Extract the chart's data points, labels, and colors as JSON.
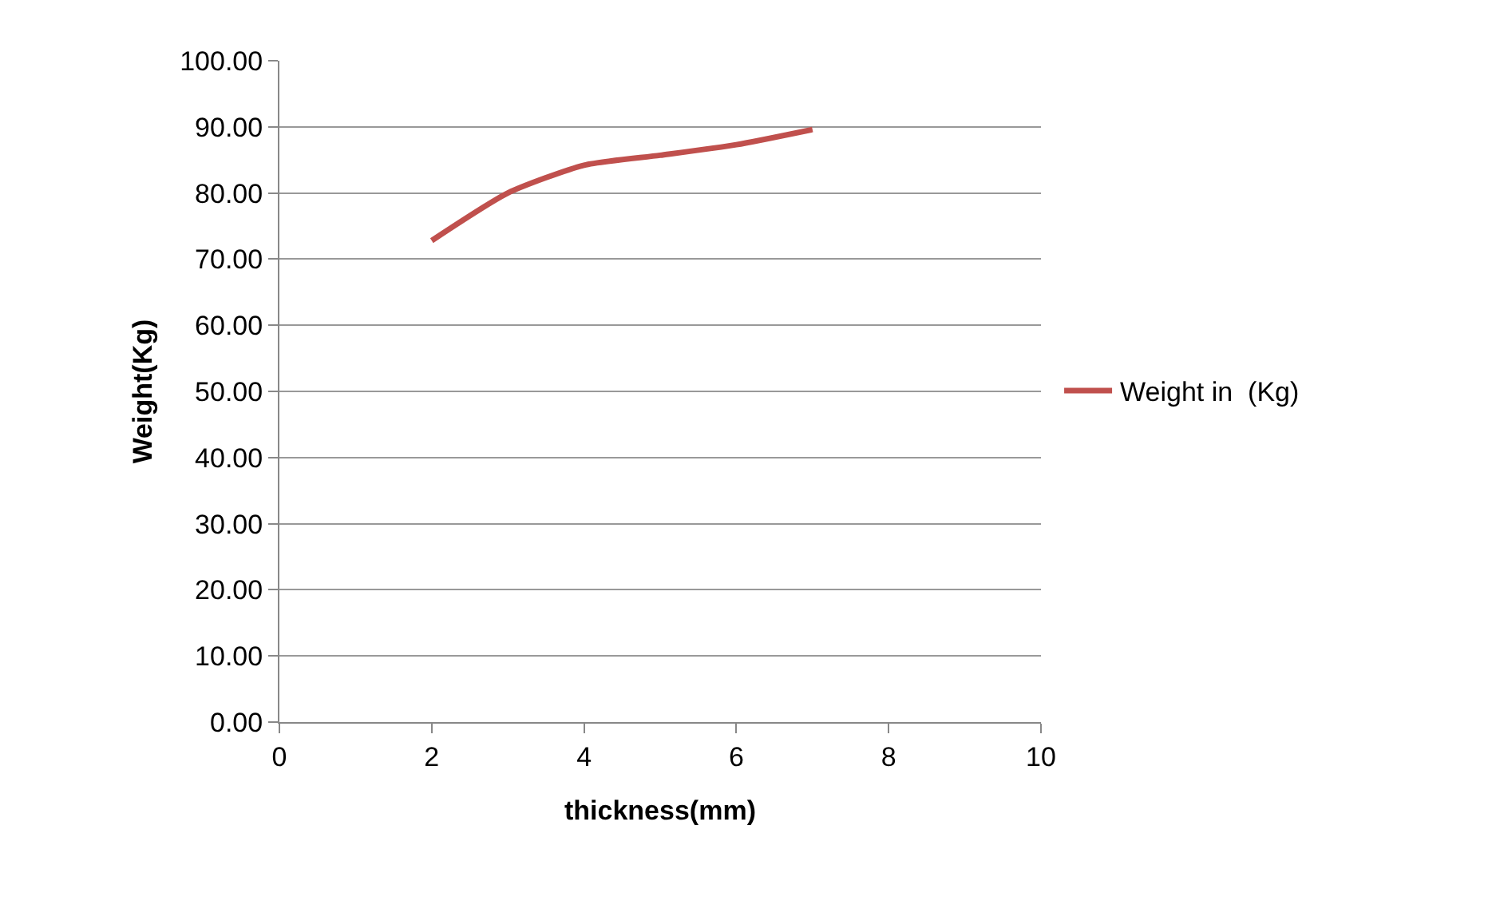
{
  "chart_data": {
    "type": "line",
    "xlabel": "thickness(mm)",
    "ylabel": "Weight(Kg)",
    "x": [
      2,
      3,
      4,
      5,
      6,
      7
    ],
    "series": [
      {
        "name": "Weight in  (Kg)",
        "color": "#c0504d",
        "values": [
          72.8,
          80.0,
          84.2,
          85.7,
          87.3,
          89.6
        ]
      }
    ],
    "xlim": [
      0,
      10
    ],
    "xticks": [
      0,
      2,
      4,
      6,
      8,
      10
    ],
    "ylim": [
      0,
      100
    ],
    "yticks": [
      {
        "value": 0,
        "label": "0.00"
      },
      {
        "value": 10,
        "label": "10.00"
      },
      {
        "value": 20,
        "label": "20.00"
      },
      {
        "value": 30,
        "label": "30.00"
      },
      {
        "value": 40,
        "label": "40.00"
      },
      {
        "value": 50,
        "label": "50.00"
      },
      {
        "value": 60,
        "label": "60.00"
      },
      {
        "value": 70,
        "label": "70.00"
      },
      {
        "value": 80,
        "label": "80.00"
      },
      {
        "value": 90,
        "label": "90.00"
      },
      {
        "value": 100,
        "label": "100.00"
      }
    ],
    "grid": "y",
    "legend": "right",
    "marker": "none",
    "line_style": "solid"
  }
}
